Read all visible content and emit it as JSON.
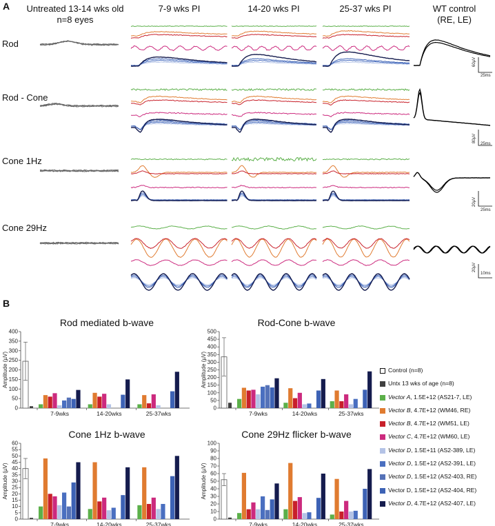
{
  "panel_labels": {
    "a": "A",
    "b": "B"
  },
  "column_headers": {
    "untreated_line1": "Untreated 13-14 wks old",
    "untreated_line2": "n=8  eyes",
    "pi_7_9": "7-9 wks PI",
    "pi_14_20": "14-20 wks PI",
    "pi_25_37": "25-37 wks PI",
    "wt_line1": "WT control",
    "wt_line2": "(RE, LE)"
  },
  "row_labels": [
    "Rod",
    "Rod - Cone",
    "Cone 1Hz",
    "Cone 29Hz"
  ],
  "scale_bars": [
    {
      "amplitude": "60µV",
      "time": "25ms"
    },
    {
      "amplitude": "80µV",
      "time": "25ms"
    },
    {
      "amplitude": "20µV",
      "time": "25ms"
    },
    {
      "amplitude": "20µV",
      "time": "10ms"
    }
  ],
  "colors": {
    "control": "#ffffff",
    "untx": "#404040",
    "vectorA": "#5cb04a",
    "vectorB_WM46": "#e07b30",
    "vectorB_WM51": "#c8202a",
    "vectorC": "#cc2a7e",
    "vectorD_389": "#b4c3e6",
    "vectorD_391": "#4a6fc0",
    "vectorD_403": "#5572b8",
    "vectorD_404": "#3d62b5",
    "vectorD_407": "#151c4e"
  },
  "legend": [
    {
      "name": "Control",
      "detail": " (n=8)",
      "italic": false,
      "color": "#ffffff"
    },
    {
      "name": "Untx 13 wks of age",
      "detail": " (n=8)",
      "italic": false,
      "color": "#404040"
    },
    {
      "name": "Vector A",
      "detail": ", 1.5E+12 (AS21-7, LE)",
      "italic": true,
      "color": "#5cb04a"
    },
    {
      "name": "Vector B",
      "detail": ", 4.7E+12 (WM46, RE)",
      "italic": true,
      "color": "#e07b30"
    },
    {
      "name": "Vector B",
      "detail": ", 4.7E+12 (WM51, LE)",
      "italic": true,
      "color": "#c8202a"
    },
    {
      "name": "Vector C",
      "detail": ", 4.7E+12 (WM60, LE)",
      "italic": true,
      "color": "#cc2a7e"
    },
    {
      "name": "Vector D",
      "detail": ", 1.5E+11 (AS2-389, LE)",
      "italic": true,
      "color": "#b4c3e6"
    },
    {
      "name": "Vector D",
      "detail": ", 1.5E+12 (AS2-391, LE)",
      "italic": true,
      "color": "#4a6fc0"
    },
    {
      "name": "Vector D",
      "detail": ", 1.5E+12 (AS2-403, RE)",
      "italic": true,
      "color": "#5572b8"
    },
    {
      "name": "Vector D",
      "detail": ", 1.5E+12 (AS2-404, RE)",
      "italic": false,
      "color": "#3d62b5"
    },
    {
      "name": "Vector D",
      "detail": ", 4.7E+12 (AS2-407, LE)",
      "italic": true,
      "color": "#151c4e"
    }
  ],
  "chart_data": [
    {
      "type": "bar",
      "title": "Rod mediated b-wave",
      "ylabel": "Amplitude (µV)",
      "xlabel": "",
      "ylim": [
        0,
        400
      ],
      "yticks": [
        0,
        50,
        100,
        150,
        200,
        250,
        300,
        350,
        400
      ],
      "control": {
        "value": 245,
        "err_low": 145,
        "err_high": 345
      },
      "untx": 10,
      "categories": [
        "7-9wks",
        "14-20wks",
        "25-37wks"
      ],
      "series": [
        {
          "name": "Vector A, 1.5E+12 (AS21-7, LE)",
          "values": [
            20,
            20,
            20
          ]
        },
        {
          "name": "Vector B, 4.7E+12 (WM46, RE)",
          "values": [
            68,
            80,
            68
          ]
        },
        {
          "name": "Vector B, 4.7E+12 (WM51, LE)",
          "values": [
            60,
            60,
            25
          ]
        },
        {
          "name": "Vector C, 4.7E+12 (WM60, LE)",
          "values": [
            78,
            75,
            72
          ]
        },
        {
          "name": "Vector D, 1.5E+11 (AS2-389, LE)",
          "values": [
            15,
            20,
            15
          ]
        },
        {
          "name": "Vector D, 1.5E+12 (AS2-391, LE)",
          "values": [
            40,
            0,
            0
          ]
        },
        {
          "name": "Vector D, 1.5E+12 (AS2-403, RE)",
          "values": [
            55,
            0,
            0
          ]
        },
        {
          "name": "Vector D, 1.5E+12 (AS2-404, RE)",
          "values": [
            48,
            70,
            88
          ]
        },
        {
          "name": "Vector D, 4.7E+12 (AS2-407, LE)",
          "values": [
            95,
            150,
            190
          ]
        }
      ]
    },
    {
      "type": "bar",
      "title": "Rod-Cone b-wave",
      "ylabel": "Amplitude (µV)",
      "xlabel": "",
      "ylim": [
        0,
        500
      ],
      "yticks": [
        0,
        50,
        100,
        150,
        200,
        250,
        300,
        350,
        400,
        450,
        500
      ],
      "control": {
        "value": 335,
        "err_low": 210,
        "err_high": 460
      },
      "untx": 35,
      "categories": [
        "7-9wks",
        "14-20wks",
        "25-37wks"
      ],
      "series": [
        {
          "name": "Vector A, 1.5E+12 (AS21-7, LE)",
          "values": [
            60,
            35,
            45
          ]
        },
        {
          "name": "Vector B, 4.7E+12 (WM46, RE)",
          "values": [
            133,
            130,
            115
          ]
        },
        {
          "name": "Vector B, 4.7E+12 (WM51, LE)",
          "values": [
            115,
            65,
            45
          ]
        },
        {
          "name": "Vector C, 4.7E+12 (WM60, LE)",
          "values": [
            120,
            100,
            90
          ]
        },
        {
          "name": "Vector D, 1.5E+11 (AS2-389, LE)",
          "values": [
            90,
            25,
            25
          ]
        },
        {
          "name": "Vector D, 1.5E+12 (AS2-391, LE)",
          "values": [
            140,
            30,
            60
          ]
        },
        {
          "name": "Vector D, 1.5E+12 (AS2-403, RE)",
          "values": [
            150,
            0,
            0
          ]
        },
        {
          "name": "Vector D, 1.5E+12 (AS2-404, RE)",
          "values": [
            135,
            115,
            120
          ]
        },
        {
          "name": "Vector D, 4.7E+12 (AS2-407, LE)",
          "values": [
            195,
            190,
            240
          ]
        }
      ]
    },
    {
      "type": "bar",
      "title": "Cone 1Hz b-wave",
      "ylabel": "Amplitude (µV)",
      "xlabel": "",
      "ylim": [
        0,
        60
      ],
      "yticks": [
        0,
        5,
        10,
        15,
        20,
        25,
        30,
        35,
        40,
        45,
        50,
        55,
        60
      ],
      "control": {
        "value": 40,
        "err_low": 32,
        "err_high": 48
      },
      "untx": 1,
      "categories": [
        "7-9wks",
        "14-20wks",
        "25-37wks"
      ],
      "series": [
        {
          "name": "Vector A, 1.5E+12 (AS21-7, LE)",
          "values": [
            10,
            8,
            11
          ]
        },
        {
          "name": "Vector B, 4.7E+12 (WM46, RE)",
          "values": [
            48,
            45,
            41
          ]
        },
        {
          "name": "Vector B, 4.7E+12 (WM51, LE)",
          "values": [
            20,
            14,
            12
          ]
        },
        {
          "name": "Vector C, 4.7E+12 (WM60, LE)",
          "values": [
            18,
            17,
            17
          ]
        },
        {
          "name": "Vector D, 1.5E+11 (AS2-389, LE)",
          "values": [
            11,
            7,
            8
          ]
        },
        {
          "name": "Vector D, 1.5E+12 (AS2-391, LE)",
          "values": [
            21,
            9,
            12
          ]
        },
        {
          "name": "Vector D, 1.5E+12 (AS2-403, RE)",
          "values": [
            10,
            0,
            0
          ]
        },
        {
          "name": "Vector D, 1.5E+12 (AS2-404, RE)",
          "values": [
            29,
            19,
            34
          ]
        },
        {
          "name": "Vector D, 4.7E+12 (AS2-407, LE)",
          "values": [
            45,
            41,
            50
          ]
        }
      ]
    },
    {
      "type": "bar",
      "title": "Cone 29Hz flicker b-wave",
      "ylabel": "Amplitude (µV)",
      "xlabel": "",
      "ylim": [
        0,
        100
      ],
      "yticks": [
        0,
        10,
        20,
        30,
        40,
        50,
        60,
        70,
        80,
        90,
        100
      ],
      "control": {
        "value": 52,
        "err_low": 44,
        "err_high": 60
      },
      "untx": 2,
      "categories": [
        "7-9wks",
        "14-20wks",
        "25-37wks"
      ],
      "series": [
        {
          "name": "Vector A, 1.5E+12 (AS21-7, LE)",
          "values": [
            8,
            13,
            6
          ]
        },
        {
          "name": "Vector B, 4.7E+12 (WM46, RE)",
          "values": [
            61,
            74,
            53
          ]
        },
        {
          "name": "Vector B, 4.7E+12 (WM51, LE)",
          "values": [
            13,
            24,
            10
          ]
        },
        {
          "name": "Vector C, 4.7E+12 (WM60, LE)",
          "values": [
            22,
            29,
            24
          ]
        },
        {
          "name": "Vector D, 1.5E+11 (AS2-389, LE)",
          "values": [
            13,
            8,
            10
          ]
        },
        {
          "name": "Vector D, 1.5E+12 (AS2-391, LE)",
          "values": [
            30,
            9,
            11
          ]
        },
        {
          "name": "Vector D, 1.5E+12 (AS2-403, RE)",
          "values": [
            12,
            0,
            0
          ]
        },
        {
          "name": "Vector D, 1.5E+12 (AS2-404, RE)",
          "values": [
            26,
            28,
            40
          ]
        },
        {
          "name": "Vector D, 4.7E+12 (AS2-407, LE)",
          "values": [
            47,
            60,
            66
          ]
        }
      ]
    }
  ]
}
